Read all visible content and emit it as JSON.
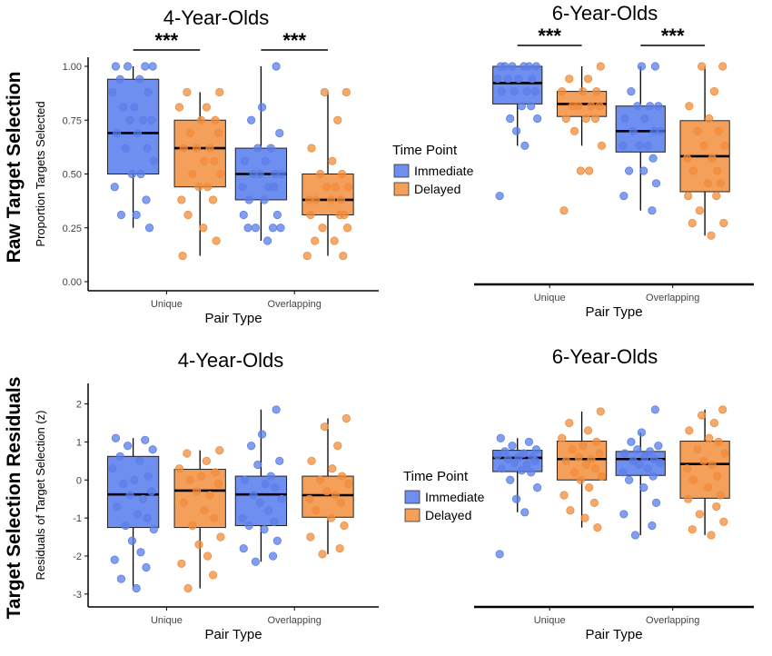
{
  "row_labels": [
    "Raw Target Selection",
    "Target Selection Residuals"
  ],
  "legend": {
    "title": "Time Point",
    "items": [
      {
        "label": "Immediate",
        "color": "#6f8ff0"
      },
      {
        "label": "Delayed",
        "color": "#f5a05a"
      }
    ]
  },
  "colors": {
    "immediate": "#6f8ff0",
    "delayed": "#f5a05a",
    "immediate_point": "#5b7ee8",
    "delayed_point": "#f08c3c"
  },
  "chart_data": [
    {
      "type": "box",
      "title": "4-Year-Olds",
      "xlabel": "Pair Type",
      "ylabel": "Proportion Targets Selected",
      "categories": [
        "Unique",
        "Overlapping"
      ],
      "ylim": [
        0,
        1
      ],
      "yticks": [
        0,
        0.25,
        0.5,
        0.75,
        1
      ],
      "ytick_labels": [
        "0.00",
        "0.25",
        "0.50",
        "0.75",
        "1.00"
      ],
      "significance": [
        "***",
        "***"
      ],
      "series": [
        {
          "name": "Immediate",
          "boxes": [
            {
              "min": 0.25,
              "q1": 0.5,
              "median": 0.69,
              "q3": 0.94,
              "max": 1.0,
              "points": [
                1,
                1,
                1,
                1,
                0.94,
                0.94,
                0.88,
                0.88,
                0.81,
                0.81,
                0.75,
                0.75,
                0.75,
                0.69,
                0.69,
                0.62,
                0.62,
                0.56,
                0.5,
                0.5,
                0.44,
                0.38,
                0.31,
                0.31,
                0.25
              ]
            },
            {
              "min": 0.19,
              "q1": 0.38,
              "median": 0.5,
              "q3": 0.62,
              "max": 1.0,
              "points": [
                1,
                0.81,
                0.75,
                0.69,
                0.62,
                0.62,
                0.56,
                0.56,
                0.5,
                0.5,
                0.5,
                0.5,
                0.44,
                0.44,
                0.44,
                0.38,
                0.38,
                0.31,
                0.31,
                0.25,
                0.25,
                0.25,
                0.25,
                0.19
              ]
            }
          ]
        },
        {
          "name": "Delayed",
          "boxes": [
            {
              "min": 0.12,
              "q1": 0.44,
              "median": 0.62,
              "q3": 0.75,
              "max": 0.88,
              "points": [
                0.88,
                0.88,
                0.81,
                0.81,
                0.75,
                0.75,
                0.69,
                0.69,
                0.62,
                0.62,
                0.62,
                0.56,
                0.56,
                0.5,
                0.5,
                0.44,
                0.44,
                0.38,
                0.38,
                0.31,
                0.25,
                0.19,
                0.12
              ]
            },
            {
              "min": 0.12,
              "q1": 0.31,
              "median": 0.38,
              "q3": 0.5,
              "max": 0.88,
              "points": [
                0.88,
                0.88,
                0.75,
                0.62,
                0.56,
                0.5,
                0.5,
                0.44,
                0.44,
                0.44,
                0.38,
                0.38,
                0.38,
                0.38,
                0.31,
                0.31,
                0.31,
                0.25,
                0.25,
                0.19,
                0.19,
                0.12,
                0.12
              ]
            }
          ]
        }
      ]
    },
    {
      "type": "box",
      "title": "6-Year-Olds",
      "xlabel": "Pair Type",
      "ylabel": "",
      "categories": [
        "Unique",
        "Overlapping"
      ],
      "ylim": [
        0,
        1
      ],
      "yticks": [],
      "ytick_labels": [],
      "significance": [
        "***",
        "***"
      ],
      "series": [
        {
          "name": "Immediate",
          "boxes": [
            {
              "min": 0.62,
              "q1": 0.82,
              "median": 0.92,
              "q3": 1.0,
              "max": 1.0,
              "points": [
                1,
                1,
                1,
                1,
                1,
                1,
                0.94,
                0.94,
                0.94,
                0.94,
                0.88,
                0.88,
                0.88,
                0.88,
                0.81,
                0.81,
                0.75,
                0.75,
                0.69,
                0.62,
                0.38
              ]
            },
            {
              "min": 0.31,
              "q1": 0.59,
              "median": 0.69,
              "q3": 0.81,
              "max": 1.0,
              "points": [
                1,
                1,
                0.88,
                0.81,
                0.81,
                0.81,
                0.75,
                0.75,
                0.69,
                0.69,
                0.69,
                0.62,
                0.62,
                0.62,
                0.56,
                0.5,
                0.5,
                0.44,
                0.38,
                0.31
              ]
            }
          ]
        },
        {
          "name": "Delayed",
          "boxes": [
            {
              "min": 0.62,
              "q1": 0.76,
              "median": 0.82,
              "q3": 0.88,
              "max": 1.0,
              "points": [
                1,
                0.94,
                0.94,
                0.88,
                0.88,
                0.88,
                0.81,
                0.81,
                0.81,
                0.81,
                0.75,
                0.75,
                0.75,
                0.69,
                0.62,
                0.5,
                0.5,
                0.31
              ]
            },
            {
              "min": 0.19,
              "q1": 0.4,
              "median": 0.57,
              "q3": 0.74,
              "max": 1.0,
              "points": [
                1,
                1,
                0.88,
                0.81,
                0.75,
                0.69,
                0.69,
                0.62,
                0.62,
                0.56,
                0.56,
                0.5,
                0.5,
                0.44,
                0.44,
                0.38,
                0.38,
                0.31,
                0.25,
                0.25,
                0.19
              ]
            }
          ]
        }
      ]
    },
    {
      "type": "box",
      "title": "4-Year-Olds",
      "xlabel": "Pair Type",
      "ylabel": "Residuals of Target Selection (z)",
      "categories": [
        "Unique",
        "Overlapping"
      ],
      "ylim": [
        -3.1,
        2.3
      ],
      "yticks": [
        -3,
        -2,
        -1,
        0,
        1,
        2
      ],
      "ytick_labels": [
        "-3",
        "-2",
        "-1",
        "0",
        "1",
        "2"
      ],
      "significance": [],
      "series": [
        {
          "name": "Immediate",
          "boxes": [
            {
              "min": -2.85,
              "q1": -1.25,
              "median": -0.38,
              "q3": 0.62,
              "max": 1.1,
              "points": [
                1.1,
                1.05,
                0.9,
                0.8,
                0.62,
                0.5,
                0.3,
                0.1,
                0.0,
                -0.1,
                -0.3,
                -0.4,
                -0.5,
                -0.7,
                -0.9,
                -1.0,
                -1.2,
                -1.3,
                -1.6,
                -1.9,
                -2.1,
                -2.3,
                -2.6,
                -2.85
              ]
            },
            {
              "min": -2.15,
              "q1": -1.2,
              "median": -0.38,
              "q3": 0.1,
              "max": 1.85,
              "points": [
                1.85,
                1.2,
                0.9,
                0.5,
                0.4,
                0.1,
                0.0,
                -0.1,
                -0.2,
                -0.4,
                -0.5,
                -0.6,
                -0.8,
                -1.0,
                -1.1,
                -1.2,
                -1.3,
                -1.6,
                -1.8,
                -2.0,
                -2.15
              ]
            }
          ]
        },
        {
          "name": "Delayed",
          "boxes": [
            {
              "min": -2.85,
              "q1": -1.25,
              "median": -0.28,
              "q3": 0.28,
              "max": 0.78,
              "points": [
                0.78,
                0.7,
                0.5,
                0.3,
                0.2,
                0.1,
                0.0,
                -0.1,
                -0.3,
                -0.4,
                -0.6,
                -0.8,
                -1.0,
                -1.2,
                -1.5,
                -1.7,
                -2.0,
                -2.2,
                -2.5,
                -2.85
              ]
            },
            {
              "min": -1.95,
              "q1": -0.98,
              "median": -0.4,
              "q3": 0.1,
              "max": 1.62,
              "points": [
                1.62,
                1.4,
                0.9,
                0.5,
                0.3,
                0.1,
                0.0,
                -0.1,
                -0.3,
                -0.4,
                -0.5,
                -0.6,
                -0.8,
                -1.0,
                -1.2,
                -1.5,
                -1.8,
                -1.95
              ]
            }
          ]
        }
      ]
    },
    {
      "type": "box",
      "title": "6-Year-Olds",
      "xlabel": "Pair Type",
      "ylabel": "",
      "categories": [
        "Unique",
        "Overlapping"
      ],
      "ylim": [
        -3.1,
        2.3
      ],
      "yticks": [],
      "ytick_labels": [],
      "significance": [],
      "series": [
        {
          "name": "Immediate",
          "boxes": [
            {
              "min": -0.85,
              "q1": 0.22,
              "median": 0.58,
              "q3": 0.78,
              "max": 1.1,
              "points": [
                1.1,
                1.0,
                0.9,
                0.8,
                0.75,
                0.7,
                0.65,
                0.6,
                0.6,
                0.55,
                0.5,
                0.45,
                0.4,
                0.3,
                0.25,
                0.2,
                0.0,
                -0.2,
                -0.5,
                -0.85,
                -1.95
              ]
            },
            {
              "min": -1.45,
              "q1": 0.12,
              "median": 0.55,
              "q3": 0.75,
              "max": 1.25,
              "points": [
                1.85,
                1.25,
                1.0,
                0.9,
                0.8,
                0.75,
                0.7,
                0.6,
                0.55,
                0.5,
                0.45,
                0.4,
                0.3,
                0.2,
                0.1,
                0.0,
                -0.2,
                -0.6,
                -0.9,
                -1.2,
                -1.45
              ]
            }
          ]
        },
        {
          "name": "Delayed",
          "boxes": [
            {
              "min": -1.25,
              "q1": 0.0,
              "median": 0.55,
              "q3": 1.02,
              "max": 1.8,
              "points": [
                1.8,
                1.5,
                1.3,
                1.1,
                1.0,
                0.9,
                0.8,
                0.7,
                0.6,
                0.55,
                0.5,
                0.4,
                0.3,
                0.2,
                0.1,
                0.0,
                -0.2,
                -0.4,
                -0.6,
                -0.8,
                -1.0,
                -1.25
              ]
            },
            {
              "min": -1.45,
              "q1": -0.48,
              "median": 0.42,
              "q3": 1.02,
              "max": 1.85,
              "points": [
                1.85,
                1.7,
                1.5,
                1.3,
                1.1,
                1.0,
                0.8,
                0.7,
                0.5,
                0.4,
                0.3,
                0.1,
                0.0,
                -0.2,
                -0.4,
                -0.5,
                -0.7,
                -0.9,
                -1.1,
                -1.3,
                -1.45
              ]
            }
          ]
        }
      ]
    }
  ]
}
